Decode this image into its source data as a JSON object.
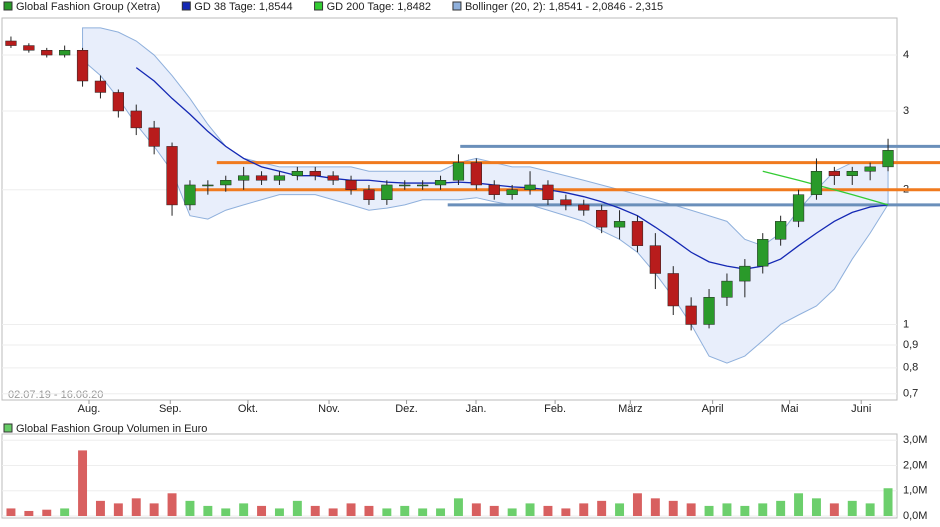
{
  "chart_data": [
    {
      "type": "candlestick",
      "log": true,
      "grid": true,
      "date_range": "02.07.19 - 16.06.20",
      "up_color": "#2a9a2a",
      "down_color": "#b81c1c",
      "x": [
        0,
        1,
        2,
        3,
        4,
        5,
        6,
        7,
        8,
        9,
        10,
        11,
        12,
        13,
        14,
        15,
        16,
        17,
        18,
        19,
        20,
        21,
        22,
        23,
        24,
        25,
        26,
        27,
        28,
        29,
        30,
        31,
        32,
        33,
        34,
        35,
        36,
        37,
        38,
        39,
        40,
        41,
        42,
        43,
        44,
        45,
        46,
        47,
        48,
        49
      ],
      "xlim": [
        -0.5,
        49.5
      ],
      "xticks": [
        {
          "value": 4.36,
          "label": "Aug."
        },
        {
          "value": 8.9,
          "label": "Sep."
        },
        {
          "value": 13.24,
          "label": "Okt."
        },
        {
          "value": 17.77,
          "label": "Nov."
        },
        {
          "value": 22.1,
          "label": "Dez."
        },
        {
          "value": 25.98,
          "label": "Jan."
        },
        {
          "value": 30.4,
          "label": "Feb."
        },
        {
          "value": 34.6,
          "label": "März"
        },
        {
          "value": 39.2,
          "label": "April"
        },
        {
          "value": 43.5,
          "label": "Mai"
        },
        {
          "value": 47.5,
          "label": "Juni"
        }
      ],
      "ylim": [
        0.678,
        4.84
      ],
      "yticks": [
        {
          "value": 0.7,
          "label": "0,7"
        },
        {
          "value": 0.8,
          "label": "0,8"
        },
        {
          "value": 0.9,
          "label": "0,9"
        },
        1,
        2,
        3,
        4
      ],
      "series": [
        {
          "name": "Global Fashion Group (Xetra)",
          "color": "#2a9a2a",
          "open": [
            4.3,
            4.2,
            4.1,
            4.0,
            4.1,
            3.5,
            3.3,
            3.0,
            2.75,
            2.5,
            1.85,
            2.05,
            2.05,
            2.1,
            2.15,
            2.1,
            2.15,
            2.2,
            2.15,
            2.1,
            2.0,
            1.9,
            2.05,
            2.05,
            2.05,
            2.1,
            2.3,
            2.05,
            1.95,
            2.0,
            2.05,
            1.9,
            1.85,
            1.8,
            1.65,
            1.7,
            1.5,
            1.3,
            1.1,
            1.0,
            1.15,
            1.25,
            1.35,
            1.55,
            1.7,
            1.95,
            2.2,
            2.15,
            2.2,
            2.25
          ],
          "high": [
            4.4,
            4.25,
            4.15,
            4.2,
            4.15,
            3.6,
            3.35,
            3.1,
            2.85,
            2.55,
            2.1,
            2.1,
            2.15,
            2.25,
            2.2,
            2.2,
            2.25,
            2.25,
            2.2,
            2.15,
            2.05,
            2.1,
            2.1,
            2.1,
            2.15,
            2.4,
            2.35,
            2.1,
            2.05,
            2.2,
            2.1,
            1.95,
            1.9,
            1.85,
            1.8,
            1.75,
            1.6,
            1.35,
            1.15,
            1.2,
            1.3,
            1.4,
            1.6,
            1.75,
            2.0,
            2.35,
            2.25,
            2.25,
            2.3,
            2.6
          ],
          "low": [
            4.15,
            4.05,
            3.95,
            3.95,
            3.4,
            3.2,
            2.9,
            2.65,
            2.4,
            1.75,
            1.8,
            1.95,
            1.98,
            2.0,
            2.05,
            2.05,
            2.1,
            2.1,
            2.05,
            1.95,
            1.85,
            1.85,
            2.0,
            2.0,
            2.0,
            2.05,
            2.0,
            1.9,
            1.9,
            1.95,
            1.85,
            1.8,
            1.75,
            1.6,
            1.55,
            1.45,
            1.2,
            1.05,
            0.97,
            0.98,
            1.1,
            1.15,
            1.3,
            1.5,
            1.65,
            1.9,
            2.05,
            2.05,
            2.1,
            2.2
          ],
          "close": [
            4.2,
            4.1,
            4.0,
            4.1,
            3.5,
            3.3,
            3.0,
            2.75,
            2.5,
            1.85,
            2.05,
            2.05,
            2.1,
            2.15,
            2.1,
            2.15,
            2.2,
            2.15,
            2.1,
            2.0,
            1.9,
            2.05,
            2.05,
            2.05,
            2.1,
            2.3,
            2.05,
            1.95,
            2.0,
            2.05,
            1.9,
            1.85,
            1.8,
            1.65,
            1.7,
            1.5,
            1.3,
            1.1,
            1.0,
            1.15,
            1.25,
            1.35,
            1.55,
            1.7,
            1.95,
            2.2,
            2.15,
            2.2,
            2.25,
            2.45
          ]
        },
        {
          "name": "GD 38 Tage: 1,8544",
          "color": "#1428b4",
          "values": [
            null,
            null,
            null,
            null,
            null,
            null,
            null,
            3.75,
            3.5,
            3.2,
            2.95,
            2.7,
            2.5,
            2.35,
            2.25,
            2.2,
            2.15,
            2.15,
            2.12,
            2.1,
            2.1,
            2.08,
            2.07,
            2.07,
            2.07,
            2.08,
            2.07,
            2.05,
            2.03,
            2.02,
            2.0,
            1.97,
            1.93,
            1.88,
            1.82,
            1.75,
            1.65,
            1.55,
            1.45,
            1.38,
            1.35,
            1.33,
            1.35,
            1.4,
            1.5,
            1.6,
            1.7,
            1.78,
            1.83,
            1.85
          ]
        },
        {
          "name": "GD 200 Tage: 1,8482",
          "color": "#33cc33",
          "values": [
            null,
            null,
            null,
            null,
            null,
            null,
            null,
            null,
            null,
            null,
            null,
            null,
            null,
            null,
            null,
            null,
            null,
            null,
            null,
            null,
            null,
            null,
            null,
            null,
            null,
            null,
            null,
            null,
            null,
            null,
            null,
            null,
            null,
            null,
            null,
            null,
            null,
            null,
            null,
            null,
            null,
            null,
            2.2,
            2.15,
            2.1,
            2.05,
            2.0,
            1.95,
            1.9,
            1.85
          ]
        },
        {
          "name": "Bollinger (20, 2): 1,8541 - 2,0846 - 2,315",
          "color": "#8fb0dc",
          "upper": [
            null,
            null,
            null,
            null,
            4.6,
            4.6,
            4.5,
            4.3,
            4.0,
            3.6,
            3.2,
            2.8,
            2.5,
            2.35,
            2.3,
            2.25,
            2.25,
            2.25,
            2.25,
            2.25,
            2.2,
            2.2,
            2.2,
            2.2,
            2.2,
            2.3,
            2.35,
            2.3,
            2.25,
            2.25,
            2.2,
            2.15,
            2.1,
            2.05,
            2.0,
            1.95,
            1.9,
            1.85,
            1.8,
            1.75,
            1.7,
            1.55,
            1.5,
            1.6,
            1.8,
            2.0,
            2.2,
            2.3,
            2.3,
            2.315
          ],
          "lower": [
            null,
            null,
            null,
            null,
            3.9,
            3.6,
            3.2,
            2.8,
            2.5,
            2.2,
            1.75,
            1.72,
            1.8,
            1.85,
            1.9,
            1.95,
            1.95,
            1.95,
            1.9,
            1.85,
            1.8,
            1.82,
            1.85,
            1.9,
            1.9,
            1.9,
            1.92,
            1.88,
            1.85,
            1.85,
            1.8,
            1.75,
            1.7,
            1.62,
            1.55,
            1.45,
            1.3,
            1.15,
            1.0,
            0.85,
            0.82,
            0.85,
            0.92,
            1.0,
            1.05,
            1.1,
            1.2,
            1.4,
            1.6,
            1.8541
          ]
        }
      ],
      "levels": [
        {
          "value": 2.3,
          "from": 11.5,
          "color": "#f07a1e"
        },
        {
          "value": 2.0,
          "from": 10.1,
          "color": "#f07a1e"
        },
        {
          "value": 2.5,
          "from": 25.1,
          "color": "#6a8fba"
        },
        {
          "value": 1.85,
          "from": 24.4,
          "color": "#6a8fba"
        }
      ]
    },
    {
      "type": "bar",
      "title": "Global Fashion Group Volumen in Euro",
      "color": "#2a9a2a",
      "grid": true,
      "xlim": [
        -0.5,
        49.5
      ],
      "values": [
        0.3,
        0.2,
        0.25,
        0.3,
        2.6,
        0.6,
        0.5,
        0.7,
        0.5,
        0.9,
        0.6,
        0.4,
        0.3,
        0.5,
        0.4,
        0.3,
        0.6,
        0.4,
        0.3,
        0.5,
        0.4,
        0.3,
        0.4,
        0.3,
        0.3,
        0.7,
        0.5,
        0.4,
        0.3,
        0.5,
        0.4,
        0.3,
        0.5,
        0.6,
        0.5,
        0.9,
        0.7,
        0.6,
        0.5,
        0.4,
        0.5,
        0.4,
        0.5,
        0.6,
        0.9,
        0.7,
        0.5,
        0.6,
        0.5,
        1.1
      ],
      "ylim": [
        0,
        3.25
      ],
      "yticks": [
        {
          "value": 0,
          "label": "0,0M"
        },
        {
          "value": 1,
          "label": "1,0M"
        },
        {
          "value": 2,
          "label": "2,0M"
        },
        {
          "value": 3,
          "label": "3,0M"
        }
      ]
    }
  ]
}
